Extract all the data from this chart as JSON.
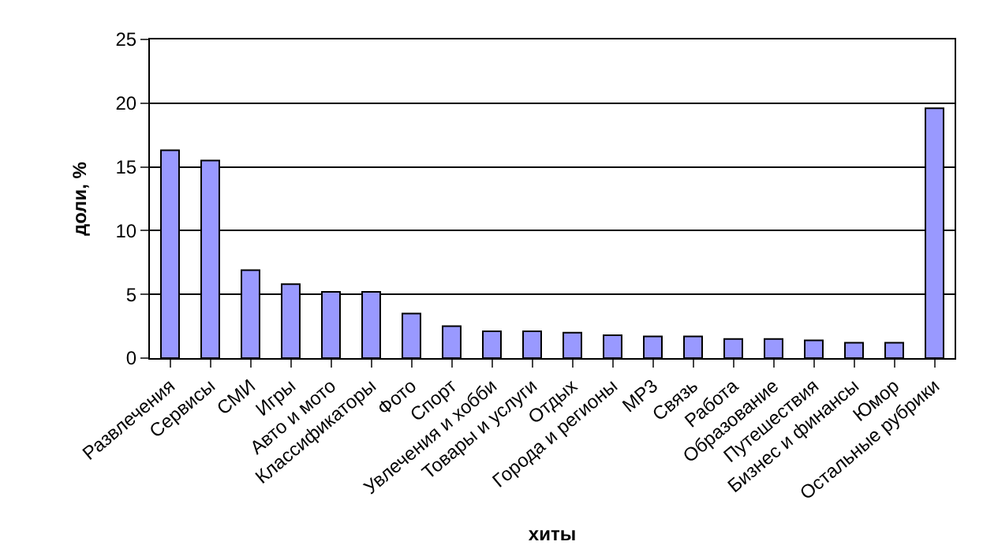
{
  "chart_data": {
    "type": "bar",
    "xlabel": "хиты",
    "ylabel": "доли, %",
    "categories": [
      "Развлечения",
      "Сервисы",
      "СМИ",
      "Игры",
      "Авто и мото",
      "Классификаторы",
      "Фото",
      "Спорт",
      "Увлечения и хобби",
      "Товары и услуги",
      "Отдых",
      "Города и регионы",
      "MP3",
      "Связь",
      "Работа",
      "Образование",
      "Путешествия",
      "Бизнес и финансы",
      "Юмор",
      "Остальные рубрики"
    ],
    "values": [
      16.3,
      15.5,
      6.9,
      5.8,
      5.2,
      5.2,
      3.5,
      2.5,
      2.1,
      2.1,
      2.0,
      1.8,
      1.7,
      1.7,
      1.5,
      1.5,
      1.4,
      1.2,
      1.2,
      19.6
    ],
    "color": "#9999ff",
    "ylim": [
      0,
      25
    ],
    "yticks": [
      0,
      5,
      10,
      15,
      20,
      25
    ],
    "grid": "y"
  }
}
